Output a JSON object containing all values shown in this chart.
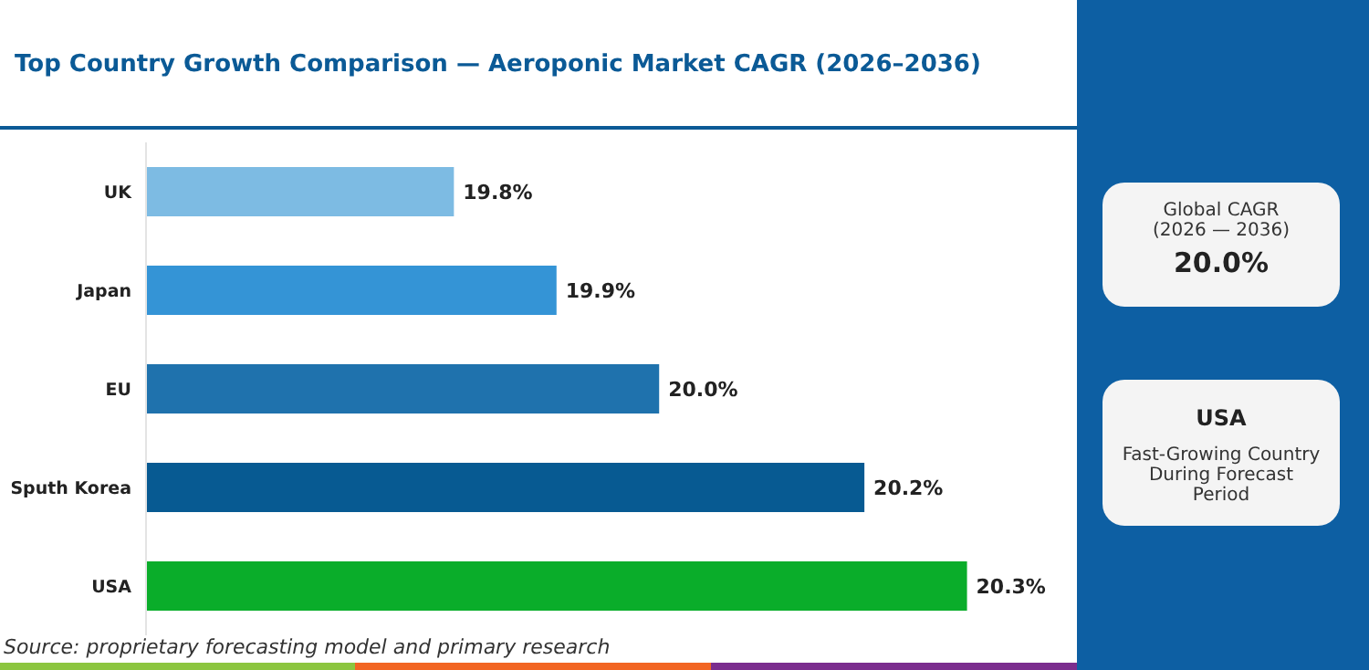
{
  "chart_data": {
    "type": "bar",
    "orientation": "horizontal",
    "title": "Top Country Growth Comparison — Aeroponic Market CAGR (2026–2036)",
    "categories": [
      "UK",
      "Japan",
      "EU",
      "Sputh Korea",
      "USA"
    ],
    "values": [
      19.8,
      19.9,
      20.0,
      20.2,
      20.3
    ],
    "colors": [
      "#7dbbe3",
      "#3494d6",
      "#1f72ad",
      "#075a92",
      "#0aad2a"
    ],
    "value_labels": [
      "19.8%",
      "19.9%",
      "20.0%",
      "20.2%",
      "20.3%"
    ],
    "xlim": [
      19.5,
      20.4
    ],
    "tick_labels": false,
    "annotations": [
      "Global CAGR",
      "(2026 — 2036)",
      "20.0%",
      "USA",
      "Fast-Growing Country During Forecast Period",
      "Source: proprietary forecasting model and primary research"
    ]
  }
}
